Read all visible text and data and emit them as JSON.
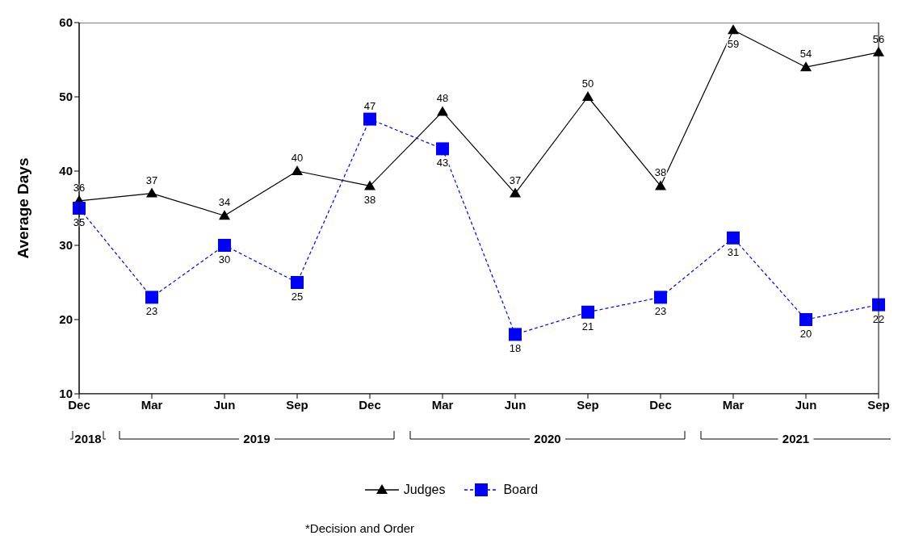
{
  "chart_data": {
    "type": "line",
    "ylabel": "Average Days",
    "categories": [
      "Dec",
      "Mar",
      "Jun",
      "Sep",
      "Dec",
      "Mar",
      "Jun",
      "Sep",
      "Dec",
      "Mar",
      "Jun",
      "Sep"
    ],
    "series": [
      {
        "name": "Judges",
        "color": "#000000",
        "marker": "triangle",
        "line_style": "solid",
        "values": [
          36,
          37,
          34,
          40,
          38,
          48,
          37,
          50,
          38,
          59,
          54,
          56
        ]
      },
      {
        "name": "Board",
        "color": "#0000ff",
        "marker": "square",
        "line_style": "dashed",
        "values": [
          35,
          23,
          30,
          25,
          47,
          43,
          18,
          21,
          23,
          31,
          20,
          22
        ]
      }
    ],
    "ylim": [
      10,
      60
    ],
    "yticks": [
      10,
      20,
      30,
      40,
      50,
      60
    ],
    "grid": false,
    "legend": "bottom",
    "data_labels": true,
    "annotations": [
      "2018",
      "2019",
      "2020",
      "2021",
      "*Decision and Order"
    ]
  }
}
